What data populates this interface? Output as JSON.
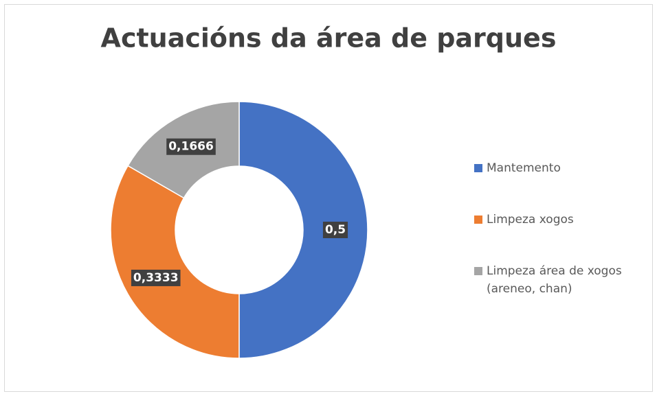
{
  "chart_data": {
    "type": "donut",
    "title": "Actuacións da área de parques",
    "series": [
      {
        "name": "Mantemento",
        "color": "#4472c4"
      },
      {
        "name": "Limpeza xogos",
        "color": "#ed7d31"
      },
      {
        "name": "Limpeza área de xogos (areneo, chan)",
        "color": "#a5a5a5"
      }
    ],
    "values": [
      0.5,
      0.3333,
      0.1666
    ],
    "value_labels": [
      "0,5",
      "0,3333",
      "0,1666"
    ],
    "legend": "right"
  }
}
